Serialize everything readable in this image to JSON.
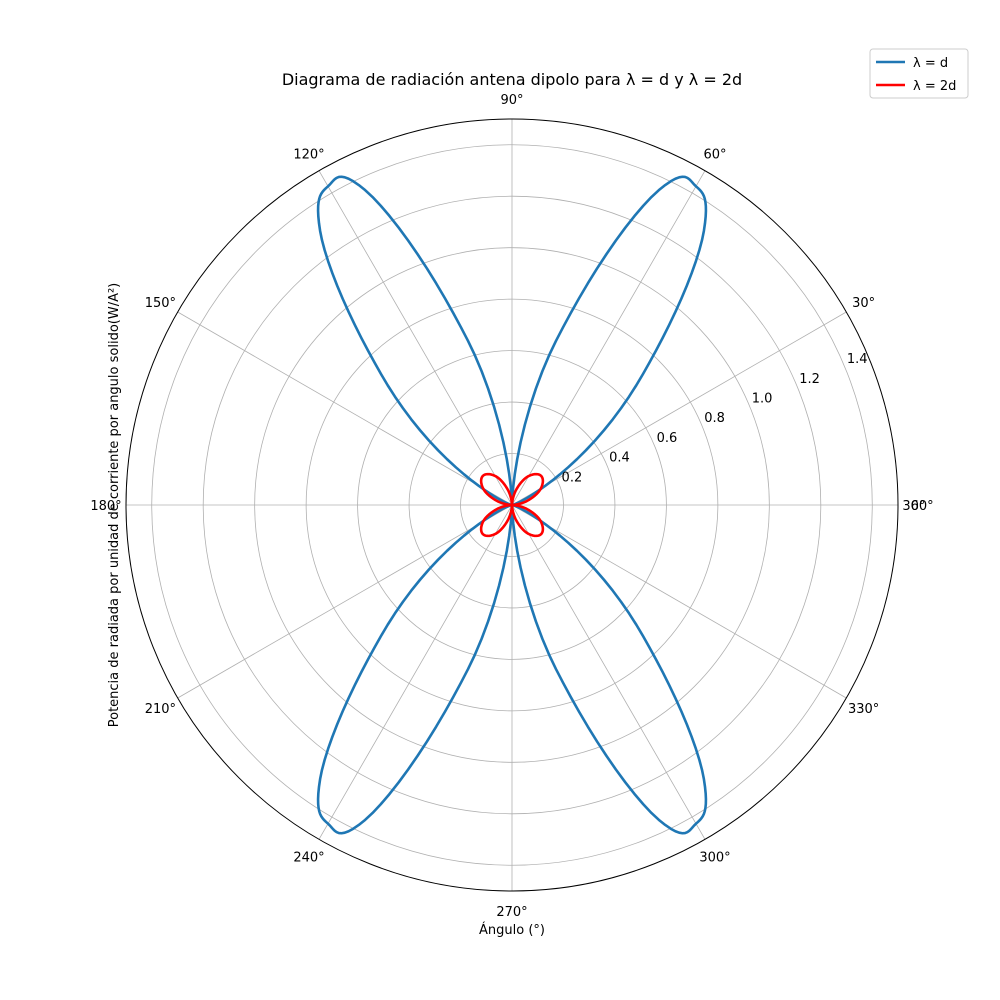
{
  "chart_data": {
    "type": "line",
    "projection": "polar",
    "title": "Diagrama de radiación antena dipolo para λ = d y λ = 2d",
    "xlabel": "Ángulo (°)",
    "ylabel": "Potencia de radiada por unidad de corriente por angulo solido(W/A²)",
    "angle_ticks": [
      "0°",
      "30°",
      "60°",
      "90°",
      "120°",
      "150°",
      "180°",
      "210°",
      "240°",
      "270°",
      "300°",
      "330°",
      "360°"
    ],
    "radial_ticks": [
      "0.2",
      "0.4",
      "0.6",
      "0.8",
      "1.0",
      "1.2",
      "1.4"
    ],
    "rlim": [
      0,
      1.5
    ],
    "grid": true,
    "legend_position": "top-right",
    "series": [
      {
        "name": "λ = d",
        "color": "#1f77b4",
        "theta_deg": [
          0,
          15,
          30,
          45,
          55,
          60,
          65,
          75,
          90,
          105,
          115,
          120,
          125,
          135,
          150,
          165,
          180,
          195,
          210,
          225,
          235,
          240,
          245,
          255,
          270,
          285,
          295,
          300,
          305,
          315,
          330,
          345,
          360
        ],
        "r": [
          0,
          0.0,
          0.15,
          0.72,
          1.3,
          1.43,
          1.35,
          0.66,
          0,
          0.66,
          1.35,
          1.43,
          1.3,
          0.72,
          0.15,
          0.0,
          0,
          0.0,
          0.15,
          0.72,
          1.3,
          1.43,
          1.35,
          0.66,
          0,
          0.66,
          1.35,
          1.43,
          1.3,
          0.72,
          0.15,
          0.0,
          0
        ]
      },
      {
        "name": "λ = 2d",
        "color": "#ff0000",
        "theta_deg": [
          0,
          15,
          30,
          45,
          60,
          75,
          90,
          105,
          120,
          135,
          150,
          165,
          180,
          195,
          210,
          225,
          240,
          255,
          270,
          285,
          300,
          315,
          330,
          345,
          360
        ],
        "r": [
          0,
          0.06,
          0.13,
          0.16,
          0.13,
          0.06,
          0,
          0.06,
          0.13,
          0.16,
          0.13,
          0.06,
          0,
          0.06,
          0.13,
          0.16,
          0.13,
          0.06,
          0,
          0.06,
          0.13,
          0.16,
          0.13,
          0.06,
          0
        ]
      }
    ]
  }
}
